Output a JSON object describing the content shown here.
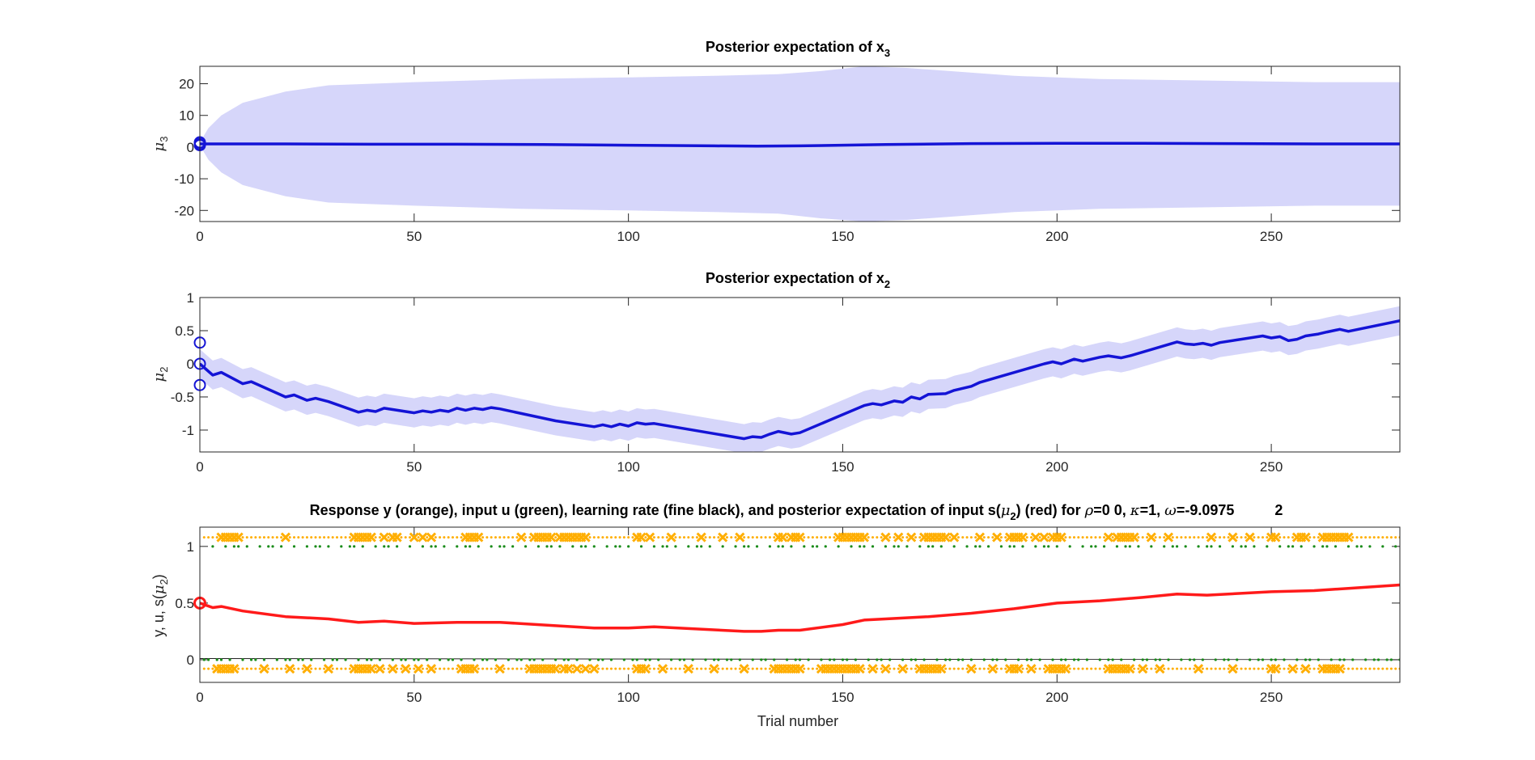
{
  "colors": {
    "band": "#d6d6fa",
    "mean": "#1414d6",
    "response": "#ffae00",
    "input": "#1a8c1a",
    "prediction": "#ff1a1a",
    "learning_rate": "#000000",
    "axis": "#262626"
  },
  "chart_data": [
    {
      "type": "area",
      "title": "Posterior expectation of x",
      "title_sub": "3",
      "ylabel": "μ",
      "ylabel_sub": "3",
      "xlim": [
        0,
        280
      ],
      "ylim": [
        -23.5,
        25.5
      ],
      "xticks": [
        0,
        50,
        100,
        150,
        200,
        250
      ],
      "yticks": [
        -20,
        -10,
        0,
        10,
        20
      ],
      "grid": false,
      "series": [
        {
          "role": "mean",
          "x": [
            0,
            20,
            40,
            60,
            80,
            100,
            120,
            130,
            140,
            160,
            180,
            200,
            220,
            240,
            260,
            280
          ],
          "values": [
            1.0,
            1.0,
            0.9,
            0.9,
            0.8,
            0.6,
            0.4,
            0.3,
            0.4,
            0.8,
            1.1,
            1.2,
            1.2,
            1.1,
            1.0,
            1.0
          ]
        },
        {
          "role": "upper_band",
          "x": [
            0,
            2,
            5,
            10,
            20,
            30,
            50,
            75,
            100,
            120,
            135,
            145,
            155,
            165,
            175,
            190,
            210,
            235,
            260,
            280
          ],
          "values": [
            1.5,
            6,
            10,
            14,
            17.5,
            19.5,
            20.5,
            21.5,
            22,
            22.5,
            23,
            24,
            25.5,
            25,
            24,
            22.5,
            21.5,
            21,
            20.5,
            20.5
          ]
        },
        {
          "role": "lower_band",
          "x": [
            0,
            2,
            5,
            10,
            20,
            30,
            50,
            75,
            100,
            120,
            135,
            145,
            155,
            165,
            175,
            190,
            210,
            235,
            260,
            280
          ],
          "values": [
            0.5,
            -4,
            -8,
            -12,
            -15.5,
            -17.5,
            -18.5,
            -19.5,
            -20,
            -20.5,
            -21,
            -22.5,
            -23.5,
            -23,
            -22,
            -20.5,
            -19.5,
            -19,
            -18.5,
            -18.5
          ]
        }
      ],
      "prior_markers": [
        0.6,
        1.0,
        1.5
      ]
    },
    {
      "type": "line",
      "title": "Posterior expectation of x",
      "title_sub": "2",
      "ylabel": "μ",
      "ylabel_sub": "2",
      "xlim": [
        0,
        280
      ],
      "ylim": [
        -1.33,
        1.0
      ],
      "xticks": [
        0,
        50,
        100,
        150,
        200,
        250
      ],
      "yticks": [
        -1,
        -0.5,
        0,
        0.5,
        1
      ],
      "grid": false,
      "band_halfwidth": 0.22,
      "series": [
        {
          "role": "mean",
          "x": [
            0,
            3,
            5,
            10,
            12,
            20,
            22,
            25,
            27,
            30,
            37,
            39,
            41,
            43,
            45,
            50,
            52,
            54,
            56,
            58,
            60,
            62,
            64,
            66,
            68,
            70,
            83,
            92,
            94,
            96,
            98,
            100,
            102,
            104,
            106,
            127,
            129,
            131,
            133,
            135,
            138,
            140,
            155,
            157,
            159,
            162,
            164,
            166,
            168,
            170,
            174,
            176,
            180,
            182,
            197,
            199,
            201,
            204,
            206,
            210,
            212,
            215,
            217,
            228,
            230,
            232,
            234,
            236,
            238,
            248,
            250,
            252,
            254,
            256,
            258,
            261,
            263,
            266,
            268,
            280
          ],
          "values": [
            0.0,
            -0.17,
            -0.13,
            -0.3,
            -0.27,
            -0.5,
            -0.47,
            -0.55,
            -0.52,
            -0.57,
            -0.73,
            -0.7,
            -0.72,
            -0.67,
            -0.69,
            -0.74,
            -0.71,
            -0.73,
            -0.7,
            -0.72,
            -0.67,
            -0.7,
            -0.67,
            -0.69,
            -0.66,
            -0.68,
            -0.86,
            -0.95,
            -0.92,
            -0.95,
            -0.91,
            -0.94,
            -0.89,
            -0.91,
            -0.9,
            -1.13,
            -1.1,
            -1.11,
            -1.06,
            -1.02,
            -1.06,
            -1.04,
            -0.63,
            -0.6,
            -0.62,
            -0.56,
            -0.58,
            -0.5,
            -0.53,
            -0.46,
            -0.45,
            -0.4,
            -0.34,
            -0.28,
            0.0,
            0.03,
            0.0,
            0.07,
            0.04,
            0.1,
            0.12,
            0.09,
            0.12,
            0.33,
            0.3,
            0.29,
            0.31,
            0.28,
            0.32,
            0.42,
            0.39,
            0.41,
            0.35,
            0.37,
            0.42,
            0.45,
            0.48,
            0.52,
            0.49,
            0.65
          ]
        }
      ],
      "prior_markers": [
        -0.32,
        0.0,
        0.32
      ]
    },
    {
      "type": "scatter",
      "title": "Response y (orange), input u (green), learning rate (fine black), and posterior expectation of input s(",
      "title_tail": ") (red) for ",
      "title_params": "=0  0, ",
      "title_kappa": "=1, ",
      "title_omega": "=-9.0975          2",
      "ylabel": "y, u, s(",
      "ylabel_sub": "2",
      "xlabel": "Trial number",
      "xlim": [
        0,
        280
      ],
      "ylim": [
        -0.2,
        1.17
      ],
      "xticks": [
        0,
        50,
        100,
        150,
        200,
        250
      ],
      "yticks": [
        0,
        0.5,
        1
      ],
      "grid": false,
      "series": [
        {
          "role": "prediction",
          "x": [
            0,
            3,
            5,
            10,
            20,
            25,
            30,
            37,
            43,
            50,
            60,
            66,
            70,
            83,
            92,
            100,
            106,
            127,
            131,
            135,
            140,
            150,
            155,
            160,
            170,
            180,
            190,
            200,
            210,
            220,
            228,
            235,
            250,
            260,
            268,
            280
          ],
          "values": [
            0.5,
            0.46,
            0.47,
            0.43,
            0.38,
            0.37,
            0.36,
            0.33,
            0.34,
            0.32,
            0.33,
            0.33,
            0.33,
            0.3,
            0.28,
            0.28,
            0.29,
            0.25,
            0.25,
            0.26,
            0.26,
            0.31,
            0.35,
            0.36,
            0.38,
            0.41,
            0.45,
            0.5,
            0.52,
            0.55,
            0.58,
            0.57,
            0.6,
            0.61,
            0.63,
            0.66
          ]
        }
      ],
      "response_x_top": [
        5,
        6,
        7,
        8,
        9,
        20,
        36,
        37,
        38,
        39,
        40,
        43,
        45,
        46,
        50,
        52,
        54,
        62,
        63,
        64,
        65,
        75,
        78,
        79,
        80,
        81,
        82,
        84,
        85,
        86,
        87,
        88,
        89,
        90,
        102,
        103,
        105,
        110,
        117,
        122,
        126,
        135,
        136,
        138,
        139,
        140,
        149,
        150,
        151,
        152,
        153,
        154,
        155,
        160,
        163,
        166,
        169,
        170,
        171,
        172,
        173,
        174,
        176,
        182,
        186,
        189,
        190,
        191,
        192,
        195,
        197,
        199,
        200,
        201,
        212,
        214,
        215,
        216,
        217,
        218,
        222,
        226,
        236,
        241,
        245,
        250,
        251,
        256,
        257,
        258,
        262,
        263,
        264,
        265,
        266,
        267,
        268
      ],
      "response_x_bottom": [
        4,
        5,
        6,
        7,
        8,
        15,
        21,
        25,
        30,
        36,
        37,
        38,
        39,
        40,
        42,
        45,
        48,
        51,
        54,
        61,
        62,
        63,
        64,
        70,
        77,
        78,
        79,
        80,
        81,
        82,
        83,
        85,
        86,
        88,
        90,
        92,
        102,
        103,
        104,
        108,
        114,
        120,
        127,
        134,
        135,
        136,
        137,
        138,
        139,
        140,
        145,
        146,
        147,
        148,
        149,
        150,
        151,
        152,
        153,
        154,
        157,
        160,
        164,
        168,
        169,
        170,
        171,
        172,
        173,
        180,
        185,
        189,
        190,
        191,
        194,
        198,
        199,
        200,
        201,
        202,
        212,
        213,
        214,
        215,
        216,
        217,
        220,
        224,
        233,
        241,
        250,
        251,
        255,
        258,
        262,
        263,
        264,
        265,
        266
      ]
    }
  ]
}
